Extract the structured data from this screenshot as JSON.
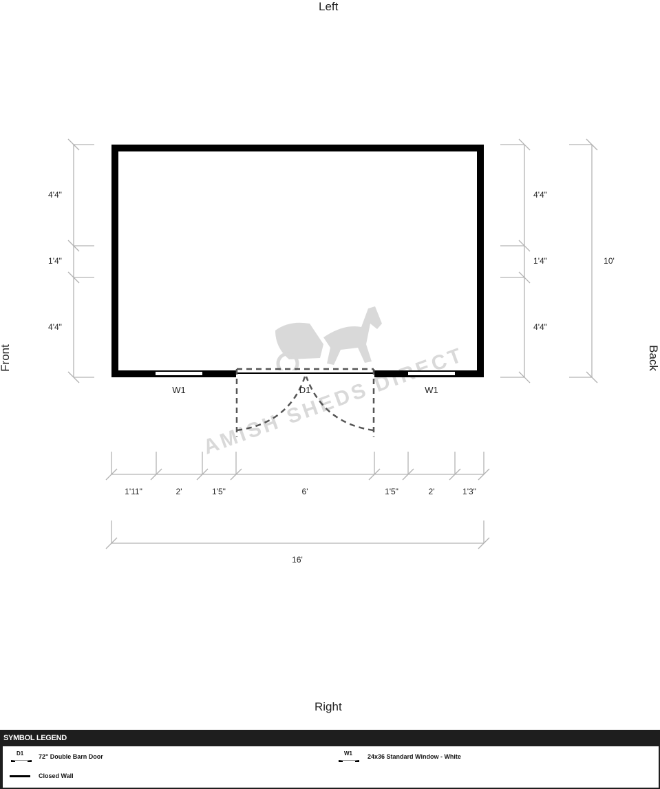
{
  "sides": {
    "top": "Left",
    "bottom": "Right",
    "left": "Front",
    "right": "Back"
  },
  "openings": {
    "window_left": "W1",
    "door": "D1",
    "window_right": "W1"
  },
  "dimensions": {
    "front_segments": [
      "4'4\"",
      "1'4\"",
      "4'4\""
    ],
    "back_segments": [
      "4'4\"",
      "1'4\"",
      "4'4\""
    ],
    "depth_total": "10'",
    "right_segments": [
      "1'11\"",
      "2'",
      "1'5\"",
      "6'",
      "1'5\"",
      "2'",
      "1'3\""
    ],
    "width_total": "16'"
  },
  "watermark": "AMISH SHEDS DIRECT",
  "legend": {
    "title": "SYMBOL LEGEND",
    "items": [
      {
        "code": "D1",
        "label": "72\" Double Barn Door"
      },
      {
        "code": "W1",
        "label": "24x36 Standard Window - White"
      },
      {
        "code": "",
        "label": "Closed Wall"
      }
    ]
  },
  "colors": {
    "wall": "#000000",
    "dimension": "#b3b3b3",
    "door_swing": "#555555",
    "legend_bar": "#1e1e1e"
  }
}
